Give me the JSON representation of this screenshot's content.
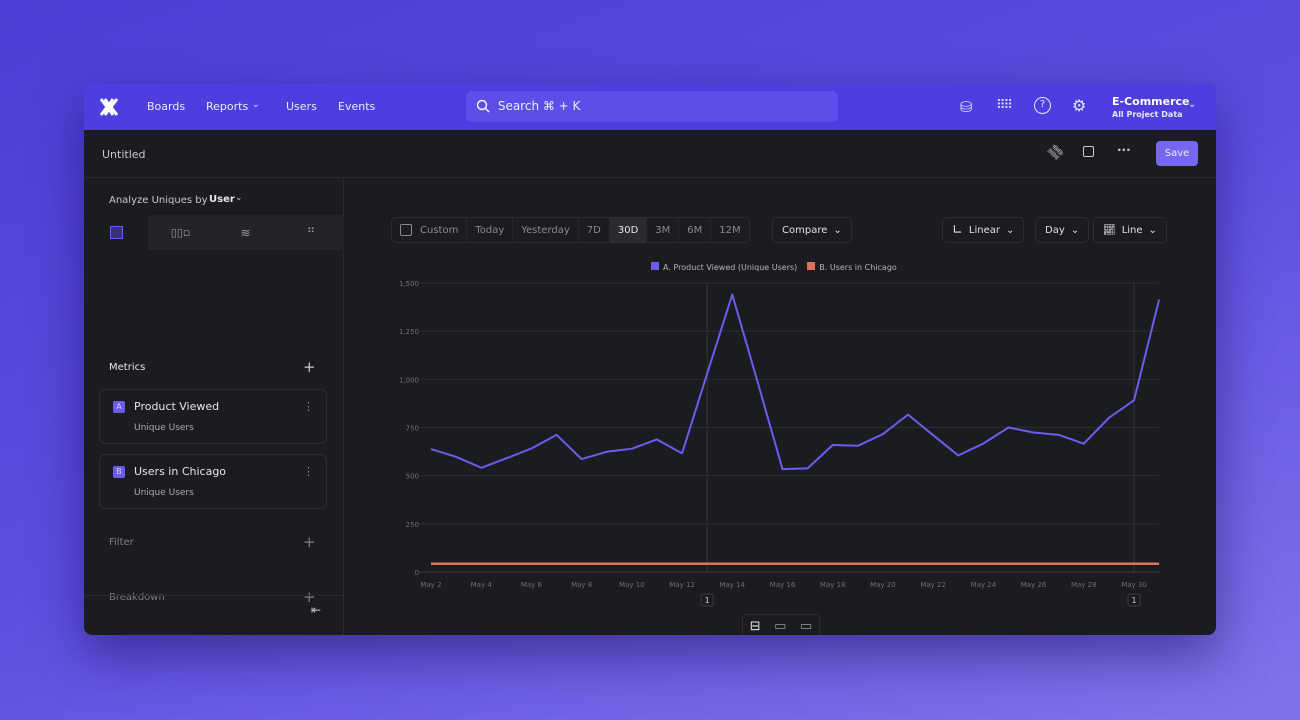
{
  "header": {
    "logo": "x-logo",
    "nav": [
      "Boards",
      "Reports",
      "Users",
      "Events"
    ],
    "search": "Search  ⌘ + K",
    "project": "E-Commerce",
    "project_sub": "All Project Data"
  },
  "subheader": {
    "title": "Untitled",
    "save": "Save"
  },
  "sidebar": {
    "analyze_label": "Analyze Uniques by",
    "analyze_value": "User",
    "metrics_label": "Metrics",
    "metrics": [
      {
        "badge": "A",
        "name": "Product Viewed",
        "sub": "Unique Users"
      },
      {
        "badge": "B",
        "name": "Users in Chicago",
        "sub": "Unique Users"
      }
    ],
    "filter_label": "Filter",
    "breakdown_label": "Breakdown"
  },
  "toolbar": {
    "custom": "Custom",
    "ranges": [
      "Today",
      "Yesterday",
      "7D",
      "30D",
      "3M",
      "6M",
      "12M"
    ],
    "selected_range": "30D",
    "compare": "Compare",
    "scale": "Linear",
    "interval": "Day",
    "chart_type": "Line"
  },
  "colors": {
    "brand": "#4b3fe0",
    "series_a": "#6b5cf0",
    "series_b": "#e0715a"
  },
  "annotations": [
    {
      "date": "May 13",
      "count": "1"
    },
    {
      "date": "May 30",
      "count": "1"
    }
  ],
  "chart_data": {
    "type": "line",
    "legend": [
      "A. Product Viewed (Unique Users)",
      "B. Users in Chicago"
    ],
    "legend_position": "top",
    "ylim": [
      0,
      1500
    ],
    "yticks": [
      "0",
      "250",
      "500",
      "750",
      "1,000",
      "1,250",
      "1,500"
    ],
    "xticks": [
      "May 2",
      "May 4",
      "May 6",
      "May 8",
      "May 10",
      "May 12",
      "May 14",
      "May 16",
      "May 18",
      "May 20",
      "May 22",
      "May 24",
      "May 26",
      "May 28",
      "May 30"
    ],
    "x": [
      "May 2",
      "May 3",
      "May 4",
      "May 5",
      "May 6",
      "May 7",
      "May 8",
      "May 9",
      "May 10",
      "May 11",
      "May 12",
      "May 13",
      "May 14",
      "May 15",
      "May 16",
      "May 17",
      "May 18",
      "May 19",
      "May 20",
      "May 21",
      "May 22",
      "May 23",
      "May 24",
      "May 25",
      "May 26",
      "May 27",
      "May 28",
      "May 29",
      "May 30",
      "May 31"
    ],
    "series": [
      {
        "name": "A. Product Viewed (Unique Users)",
        "values": [
          638,
          598,
          541,
          590,
          641,
          712,
          586,
          624,
          640,
          688,
          616,
          1030,
          1440,
          990,
          534,
          538,
          659,
          655,
          716,
          817,
          710,
          605,
          667,
          750,
          724,
          712,
          666,
          800,
          891,
          1414
        ]
      },
      {
        "name": "B. Users in Chicago",
        "values": [
          43,
          43,
          43,
          43,
          43,
          43,
          43,
          43,
          43,
          43,
          43,
          43,
          43,
          43,
          43,
          43,
          43,
          43,
          43,
          43,
          43,
          43,
          43,
          43,
          43,
          43,
          43,
          43,
          43,
          43
        ]
      }
    ],
    "grid": true
  }
}
